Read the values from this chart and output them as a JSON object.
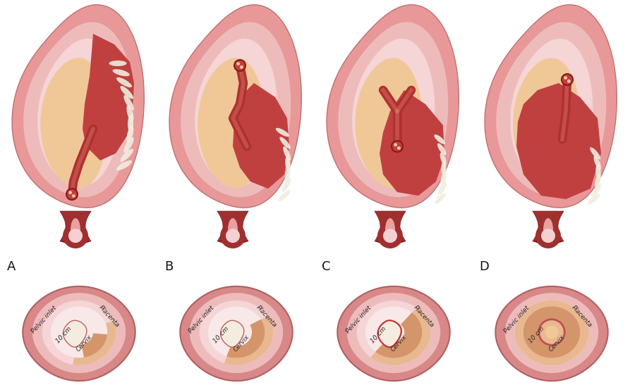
{
  "background": "#ffffff",
  "labels": [
    "A",
    "B",
    "C",
    "D"
  ],
  "outer_pink": "#e89898",
  "mid_pink": "#eebbbb",
  "inner_pink": "#f5d5d5",
  "cavity_tan": "#f0c898",
  "placenta_red": "#c04040",
  "placenta_dark": "#8b2020",
  "white_villi": "#f0ede0",
  "cervix_dark": "#a03030",
  "cord_red": "#b03030",
  "label_fontsize": 13,
  "annot_fontsize": 6.5,
  "pelvic_outer": "#d88888",
  "pelvic_tan": "#d4956a",
  "pelvic_tan_light": "#e8b890"
}
